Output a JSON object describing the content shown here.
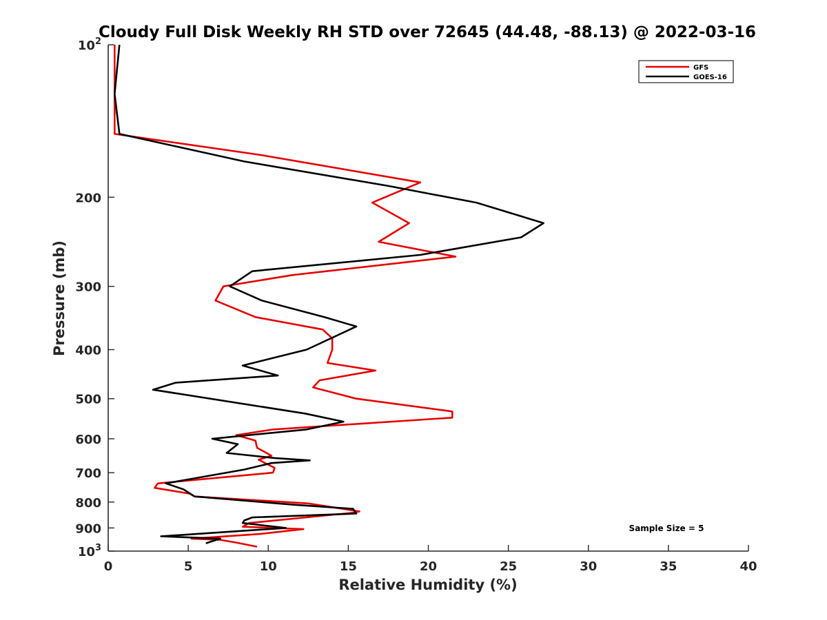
{
  "chart_data": {
    "type": "line",
    "title": "Cloudy Full Disk Weekly RH STD over 72645 (44.48, -88.13) @ 2022-03-16",
    "xlabel": "Relative Humidity (%)",
    "ylabel": "Pressure (mb)",
    "xlim": [
      0,
      40
    ],
    "ylim": [
      100,
      1000
    ],
    "y_scale": "log",
    "y_reversed": true,
    "x_ticks": [
      "0",
      "5",
      "10",
      "15",
      "20",
      "25",
      "30",
      "35",
      "40"
    ],
    "y_ticks": [
      {
        "value": 100,
        "base": "10",
        "exp": "2"
      },
      {
        "value": 200,
        "label": "200"
      },
      {
        "value": 300,
        "label": "300"
      },
      {
        "value": 400,
        "label": "400"
      },
      {
        "value": 500,
        "label": "500"
      },
      {
        "value": 600,
        "label": "600"
      },
      {
        "value": 700,
        "label": "700"
      },
      {
        "value": 800,
        "label": "800"
      },
      {
        "value": 900,
        "label": "900"
      },
      {
        "value": 1000,
        "base": "10",
        "exp": "3"
      }
    ],
    "grid": false,
    "legend_position": "top-right",
    "annotation": "Sample Size = 5",
    "series": [
      {
        "name": "GFS",
        "color": "#e60000",
        "points": [
          [
            0.4,
            100
          ],
          [
            0.4,
            125
          ],
          [
            0.4,
            150
          ],
          [
            9.5,
            165
          ],
          [
            19.5,
            187
          ],
          [
            16.5,
            205
          ],
          [
            18.8,
            225
          ],
          [
            16.9,
            245
          ],
          [
            21.7,
            262
          ],
          [
            11.5,
            285
          ],
          [
            7.2,
            300
          ],
          [
            6.7,
            320
          ],
          [
            9.2,
            345
          ],
          [
            13.4,
            365
          ],
          [
            14.0,
            380
          ],
          [
            14.0,
            400
          ],
          [
            13.7,
            425
          ],
          [
            16.7,
            440
          ],
          [
            13.2,
            460
          ],
          [
            12.8,
            475
          ],
          [
            15.5,
            500
          ],
          [
            21.5,
            530
          ],
          [
            21.5,
            545
          ],
          [
            10.3,
            575
          ],
          [
            8.0,
            590
          ],
          [
            9.2,
            605
          ],
          [
            9.3,
            625
          ],
          [
            10.2,
            648
          ],
          [
            9.4,
            660
          ],
          [
            10.4,
            685
          ],
          [
            10.3,
            700
          ],
          [
            3.1,
            735
          ],
          [
            2.9,
            750
          ],
          [
            5.1,
            770
          ],
          [
            5.4,
            780
          ],
          [
            12.5,
            805
          ],
          [
            15.7,
            835
          ],
          [
            15.3,
            840
          ],
          [
            8.8,
            880
          ],
          [
            8.4,
            895
          ],
          [
            12.2,
            905
          ],
          [
            9.5,
            925
          ],
          [
            5.2,
            945
          ],
          [
            7.0,
            950
          ],
          [
            8.0,
            962
          ],
          [
            9.3,
            980
          ]
        ]
      },
      {
        "name": "GOES-16",
        "color": "#000000",
        "points": [
          [
            0.7,
            100
          ],
          [
            0.4,
            125
          ],
          [
            0.7,
            150
          ],
          [
            8.5,
            170
          ],
          [
            17.5,
            190
          ],
          [
            23.0,
            205
          ],
          [
            27.2,
            225
          ],
          [
            25.8,
            240
          ],
          [
            19.5,
            260
          ],
          [
            9.0,
            280
          ],
          [
            7.6,
            300
          ],
          [
            9.6,
            320
          ],
          [
            13.5,
            345
          ],
          [
            15.5,
            360
          ],
          [
            12.4,
            400
          ],
          [
            8.4,
            430
          ],
          [
            10.6,
            450
          ],
          [
            4.2,
            465
          ],
          [
            2.8,
            480
          ],
          [
            12.3,
            535
          ],
          [
            14.7,
            555
          ],
          [
            12.4,
            575
          ],
          [
            6.5,
            600
          ],
          [
            8.1,
            615
          ],
          [
            7.4,
            640
          ],
          [
            10.4,
            655
          ],
          [
            12.6,
            662
          ],
          [
            10.2,
            670
          ],
          [
            8.5,
            690
          ],
          [
            5.2,
            720
          ],
          [
            3.6,
            735
          ],
          [
            4.7,
            755
          ],
          [
            5.4,
            780
          ],
          [
            11.6,
            810
          ],
          [
            15.3,
            825
          ],
          [
            15.5,
            843
          ],
          [
            9.0,
            858
          ],
          [
            8.5,
            870
          ],
          [
            8.4,
            880
          ],
          [
            11.1,
            900
          ],
          [
            3.3,
            935
          ],
          [
            7.0,
            945
          ],
          [
            6.1,
            965
          ]
        ]
      }
    ]
  }
}
